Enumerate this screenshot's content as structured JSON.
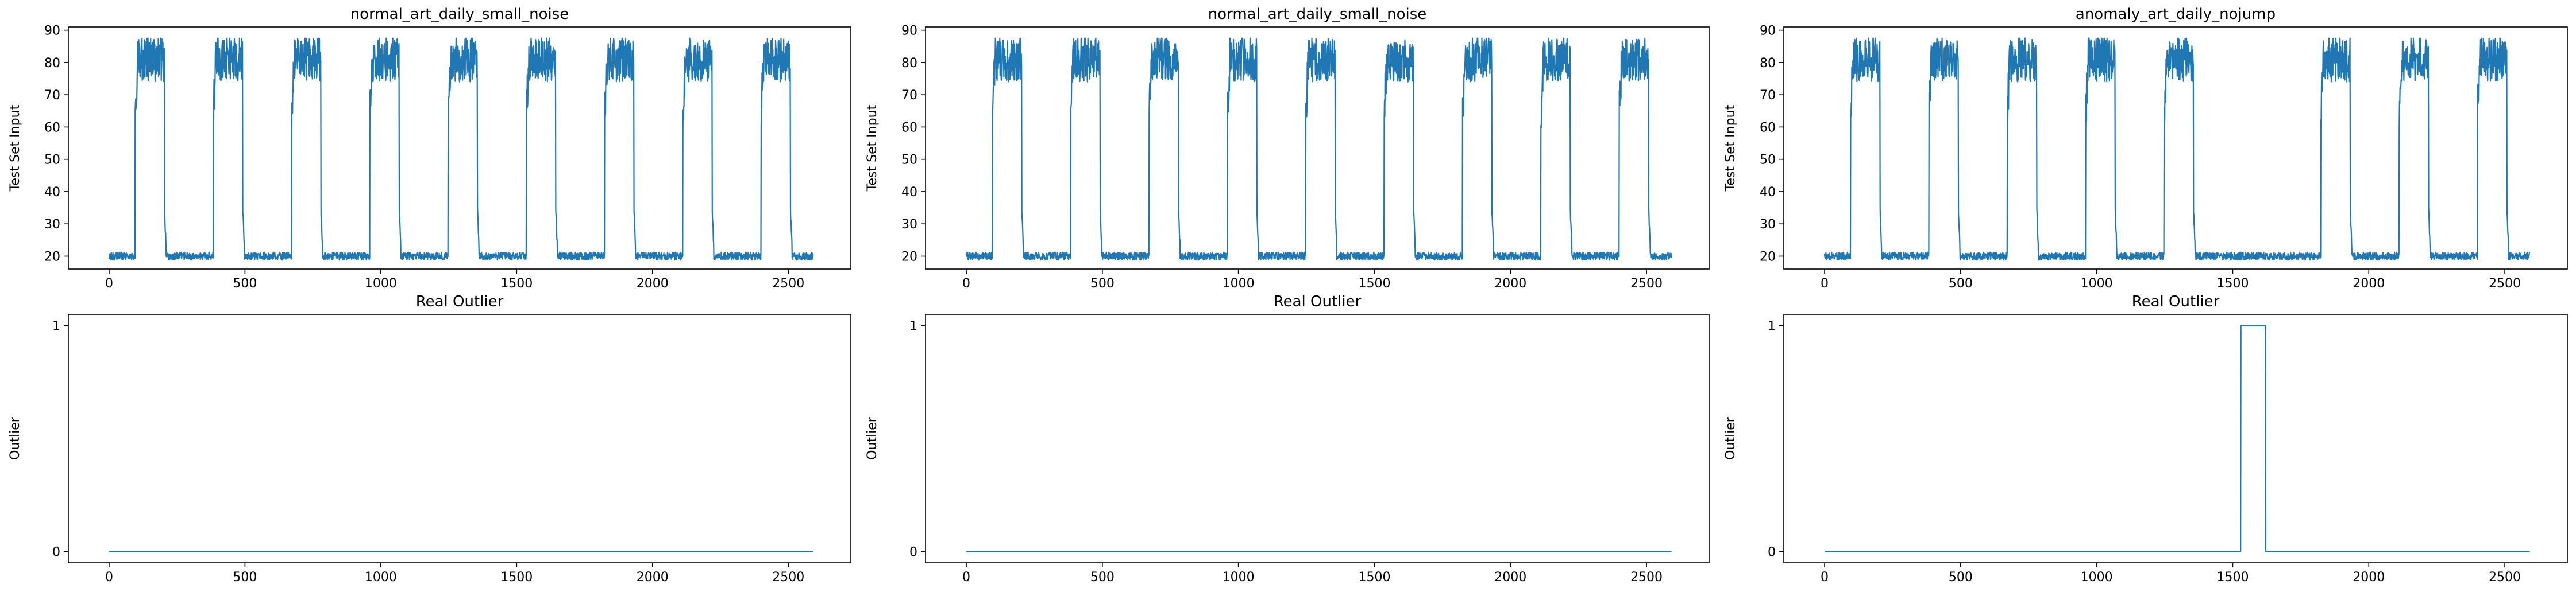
{
  "colors": {
    "line": "#1f77b4",
    "axes": "#000000",
    "background": "#ffffff"
  },
  "chart_data": [
    {
      "type": "line",
      "title": "normal_art_daily_small_noise",
      "ylabel": "Test Set Input",
      "xlabel": "",
      "xlim": [
        -150,
        2730
      ],
      "ylim": [
        16,
        91
      ],
      "xticks": [
        0,
        500,
        1000,
        1500,
        2000,
        2500
      ],
      "yticks": [
        20,
        30,
        40,
        50,
        60,
        70,
        80,
        90
      ],
      "grid": false,
      "series": [
        {
          "pattern": "daily",
          "period": 288,
          "high_start": 96,
          "high_end": 204,
          "low_level": 20,
          "high_level": 81,
          "noise": 7,
          "length": 2592,
          "flat_days": []
        }
      ]
    },
    {
      "type": "line",
      "title": "normal_art_daily_small_noise",
      "ylabel": "Test Set Input",
      "xlabel": "",
      "xlim": [
        -150,
        2730
      ],
      "ylim": [
        16,
        91
      ],
      "xticks": [
        0,
        500,
        1000,
        1500,
        2000,
        2500
      ],
      "yticks": [
        20,
        30,
        40,
        50,
        60,
        70,
        80,
        90
      ],
      "grid": false,
      "series": [
        {
          "pattern": "daily",
          "period": 288,
          "high_start": 96,
          "high_end": 204,
          "low_level": 20,
          "high_level": 81,
          "noise": 7,
          "length": 2592,
          "flat_days": []
        }
      ]
    },
    {
      "type": "line",
      "title": "anomaly_art_daily_nojump",
      "ylabel": "Test Set Input",
      "xlabel": "",
      "xlim": [
        -150,
        2730
      ],
      "ylim": [
        16,
        91
      ],
      "xticks": [
        0,
        500,
        1000,
        1500,
        2000,
        2500
      ],
      "yticks": [
        20,
        30,
        40,
        50,
        60,
        70,
        80,
        90
      ],
      "grid": false,
      "series": [
        {
          "pattern": "daily",
          "period": 288,
          "high_start": 96,
          "high_end": 204,
          "low_level": 20,
          "high_level": 81,
          "noise": 7,
          "length": 2592,
          "flat_days": [
            5
          ]
        }
      ]
    },
    {
      "type": "line",
      "title": "Real Outlier",
      "ylabel": "Outlier",
      "xlabel": "",
      "xlim": [
        -150,
        2730
      ],
      "ylim": [
        -0.05,
        1.05
      ],
      "xticks": [
        0,
        500,
        1000,
        1500,
        2000,
        2500
      ],
      "yticks": [
        0,
        1
      ],
      "grid": false,
      "series": [
        {
          "pattern": "steps",
          "x": [
            0,
            2592
          ],
          "y": [
            0,
            0
          ]
        }
      ]
    },
    {
      "type": "line",
      "title": "Real Outlier",
      "ylabel": "Outlier",
      "xlabel": "",
      "xlim": [
        -150,
        2730
      ],
      "ylim": [
        -0.05,
        1.05
      ],
      "xticks": [
        0,
        500,
        1000,
        1500,
        2000,
        2500
      ],
      "yticks": [
        0,
        1
      ],
      "grid": false,
      "series": [
        {
          "pattern": "steps",
          "x": [
            0,
            2592
          ],
          "y": [
            0,
            0
          ]
        }
      ]
    },
    {
      "type": "line",
      "title": "Real Outlier",
      "ylabel": "Outlier",
      "xlabel": "",
      "xlim": [
        -150,
        2730
      ],
      "ylim": [
        -0.05,
        1.05
      ],
      "xticks": [
        0,
        500,
        1000,
        1500,
        2000,
        2500
      ],
      "yticks": [
        0,
        1
      ],
      "grid": false,
      "series": [
        {
          "pattern": "steps",
          "x": [
            0,
            1529,
            1530,
            1620,
            1621,
            2592
          ],
          "y": [
            0,
            0,
            1,
            1,
            0,
            0
          ]
        }
      ]
    }
  ]
}
